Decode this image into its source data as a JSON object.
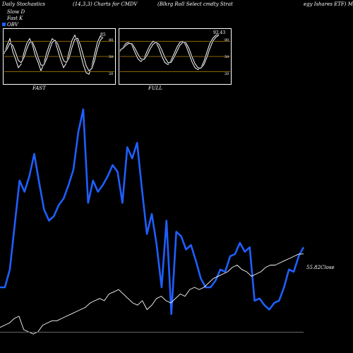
{
  "header": {
    "left": "Daily Stochastics",
    "params": "(14,3,3) Charts for CMDV",
    "name_part1": "(Blkrg Roll Select cmdty Strat",
    "name_part2": "egy Ishares ETF) Munafa"
  },
  "legend": {
    "items": [
      {
        "label": "Slow  D",
        "color": "#ffffff"
      },
      {
        "label": "Fast K",
        "color": "#ffffff"
      },
      {
        "label": "OBV",
        "color": "#1e5fff"
      }
    ]
  },
  "panels": {
    "fast_label": "FAST",
    "full_label": "FULL",
    "fast_value": "85",
    "full_value": "92.43",
    "levels": [
      "80",
      "50",
      "20"
    ]
  },
  "price_label": "55.82Close",
  "colors": {
    "obv": "#1e5fff",
    "price": "#ffffff",
    "level": "#b8860b"
  },
  "chart_data": [
    {
      "type": "line",
      "title": "FAST",
      "ylim": [
        0,
        100
      ],
      "levels": [
        80,
        50,
        20
      ],
      "series": [
        {
          "values": [
            55,
            72,
            85,
            60,
            45,
            28,
            35,
            58,
            76,
            85,
            73,
            52,
            38,
            22,
            35,
            57,
            73,
            85,
            80,
            62,
            43,
            28,
            37,
            60,
            82,
            92,
            78,
            56,
            34,
            18,
            15,
            30,
            55,
            78,
            90,
            85
          ]
        },
        {
          "values": [
            58,
            65,
            76,
            72,
            58,
            42,
            38,
            48,
            65,
            78,
            78,
            65,
            48,
            33,
            33,
            45,
            62,
            78,
            82,
            74,
            58,
            42,
            38,
            48,
            68,
            84,
            86,
            72,
            52,
            32,
            22,
            26,
            42,
            65,
            82,
            88
          ]
        }
      ]
    },
    {
      "type": "line",
      "title": "FULL",
      "ylim": [
        0,
        100
      ],
      "levels": [
        80,
        50,
        20
      ],
      "series": [
        {
          "values": [
            60,
            68,
            76,
            78,
            72,
            58,
            45,
            40,
            46,
            60,
            72,
            80,
            78,
            66,
            50,
            38,
            34,
            42,
            55,
            68,
            78,
            80,
            72,
            56,
            40,
            28,
            24,
            28,
            40,
            58,
            76,
            86,
            92,
            93
          ]
        },
        {
          "values": [
            63,
            66,
            72,
            76,
            75,
            66,
            54,
            45,
            44,
            52,
            64,
            74,
            78,
            74,
            62,
            48,
            38,
            38,
            48,
            60,
            72,
            78,
            77,
            66,
            50,
            36,
            28,
            27,
            34,
            48,
            66,
            80,
            88,
            92
          ]
        }
      ]
    },
    {
      "type": "line",
      "title": "",
      "xlabel": "",
      "ylabel": "",
      "ylim": [
        0,
        100
      ],
      "series": [
        {
          "values": [
            20,
            20,
            28,
            48,
            68,
            63,
            70,
            80,
            67,
            55,
            50,
            52,
            57,
            60,
            66,
            73,
            90,
            100,
            58,
            68,
            63,
            66,
            70,
            75,
            72,
            58,
            83,
            78,
            85,
            64,
            44,
            53,
            39,
            20,
            50,
            8,
            45,
            43,
            37,
            39,
            32,
            24,
            20,
            20,
            23,
            28,
            27,
            34,
            35,
            40,
            36,
            38,
            14,
            15,
            12,
            10,
            13,
            14,
            20,
            28,
            27,
            34,
            38
          ]
        },
        {
          "values": [
            2,
            3,
            4,
            6,
            7,
            1,
            0,
            -1,
            0,
            3,
            4,
            5,
            5,
            6,
            7,
            8,
            9,
            10,
            11,
            13,
            14,
            15,
            14,
            17,
            18,
            19,
            17,
            15,
            13,
            12,
            14,
            10,
            12,
            15,
            16,
            14,
            13,
            15,
            17,
            16,
            19,
            20,
            19,
            20,
            22,
            24,
            25,
            26,
            27,
            29,
            30,
            28,
            27,
            25,
            26,
            27,
            29,
            30,
            30,
            31,
            32,
            33,
            34,
            35,
            35
          ]
        }
      ]
    }
  ]
}
